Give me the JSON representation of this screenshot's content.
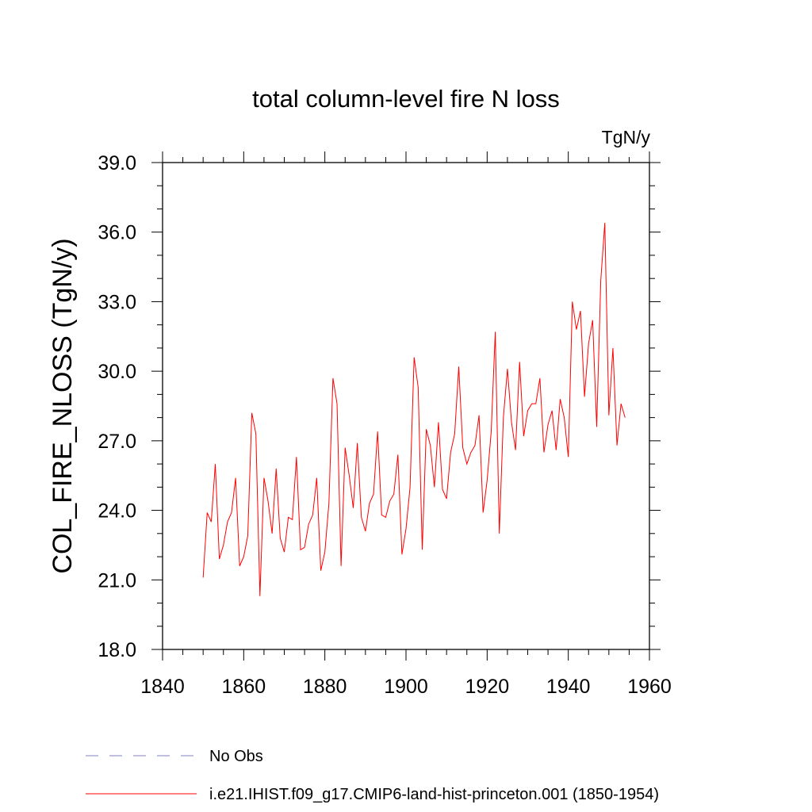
{
  "chart_data": {
    "type": "line",
    "title": "total column-level fire N loss",
    "units": "TgN/y",
    "ylabel": "COL_FIRE_NLOSS  (TgN/y)",
    "xlabel": "",
    "xlim": [
      1840,
      1960
    ],
    "ylim": [
      18.0,
      39.0
    ],
    "x_ticks": [
      1840,
      1860,
      1880,
      1900,
      1920,
      1940,
      1960
    ],
    "x_tick_labels": [
      "1840",
      "1860",
      "1880",
      "1900",
      "1920",
      "1940",
      "1960"
    ],
    "y_ticks": [
      18,
      21,
      24,
      27,
      30,
      33,
      36,
      39
    ],
    "y_tick_labels": [
      "18.0",
      "21.0",
      "24.0",
      "27.0",
      "30.0",
      "33.0",
      "36.0",
      "39.0"
    ],
    "grid": false,
    "legend_position": "bottom",
    "series": [
      {
        "name": "i.e21.IHIST.f09_g17.CMIP6-land-hist-princeton.001 (1850-1954)",
        "color": "#ff0000",
        "style": "solid",
        "x": [
          1850,
          1851,
          1852,
          1853,
          1854,
          1855,
          1856,
          1857,
          1858,
          1859,
          1860,
          1861,
          1862,
          1863,
          1864,
          1865,
          1866,
          1867,
          1868,
          1869,
          1870,
          1871,
          1872,
          1873,
          1874,
          1875,
          1876,
          1877,
          1878,
          1879,
          1880,
          1881,
          1882,
          1883,
          1884,
          1885,
          1886,
          1887,
          1888,
          1889,
          1890,
          1891,
          1892,
          1893,
          1894,
          1895,
          1896,
          1897,
          1898,
          1899,
          1900,
          1901,
          1902,
          1903,
          1904,
          1905,
          1906,
          1907,
          1908,
          1909,
          1910,
          1911,
          1912,
          1913,
          1914,
          1915,
          1916,
          1917,
          1918,
          1919,
          1920,
          1921,
          1922,
          1923,
          1924,
          1925,
          1926,
          1927,
          1928,
          1929,
          1930,
          1931,
          1932,
          1933,
          1934,
          1935,
          1936,
          1937,
          1938,
          1939,
          1940,
          1941,
          1942,
          1943,
          1944,
          1945,
          1946,
          1947,
          1948,
          1949,
          1950,
          1951,
          1952,
          1953,
          1954
        ],
        "y": [
          21.1,
          23.9,
          23.5,
          26.0,
          21.9,
          22.5,
          23.5,
          23.9,
          25.4,
          21.6,
          22.0,
          22.9,
          28.2,
          27.3,
          20.3,
          25.4,
          24.4,
          23.0,
          25.8,
          22.8,
          22.2,
          23.7,
          23.6,
          26.3,
          22.3,
          22.4,
          23.4,
          23.8,
          25.4,
          21.4,
          22.2,
          24.3,
          29.7,
          28.6,
          21.6,
          26.7,
          25.5,
          24.1,
          26.9,
          23.7,
          23.1,
          24.3,
          24.7,
          27.4,
          23.8,
          23.7,
          24.4,
          24.7,
          26.4,
          22.1,
          23.2,
          25.0,
          30.6,
          29.3,
          22.3,
          27.5,
          26.8,
          25.0,
          27.8,
          24.9,
          24.5,
          26.5,
          27.3,
          30.2,
          26.7,
          26.0,
          26.5,
          26.8,
          28.1,
          23.9,
          25.3,
          27.4,
          31.7,
          23.0,
          28.0,
          30.1,
          27.8,
          26.6,
          30.4,
          27.2,
          28.3,
          28.6,
          28.6,
          29.7,
          26.5,
          27.7,
          28.3,
          26.6,
          28.8,
          28.0,
          26.3,
          33.0,
          31.8,
          32.6,
          28.9,
          31.2,
          32.2,
          27.6,
          33.9,
          36.4,
          28.1,
          31.0,
          26.8,
          28.6,
          28.0
        ]
      },
      {
        "name": "No Obs",
        "color": "#8080c0",
        "style": "dashed",
        "x": [],
        "y": []
      }
    ]
  }
}
